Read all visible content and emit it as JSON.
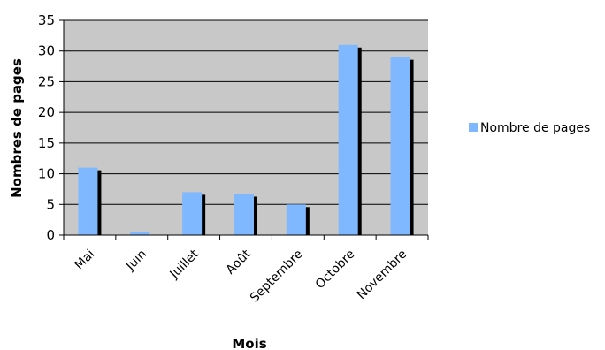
{
  "chart_data": {
    "type": "bar",
    "categories": [
      "Mai",
      "Juin",
      "Juillet",
      "Août",
      "Septembre",
      "Octobre",
      "Novembre"
    ],
    "series": [
      {
        "name": "Nombre de pages",
        "values": [
          11,
          0.5,
          7,
          6.7,
          5,
          31,
          29
        ],
        "color": "#7FB8FF"
      }
    ],
    "xlabel": "Mois",
    "ylabel": "Nombres de pages",
    "ylim": [
      0,
      35
    ],
    "yticks": [
      0,
      5,
      10,
      15,
      20,
      25,
      30,
      35
    ],
    "grid": true,
    "legend": "right",
    "plot_background": "#C8C8C8"
  }
}
